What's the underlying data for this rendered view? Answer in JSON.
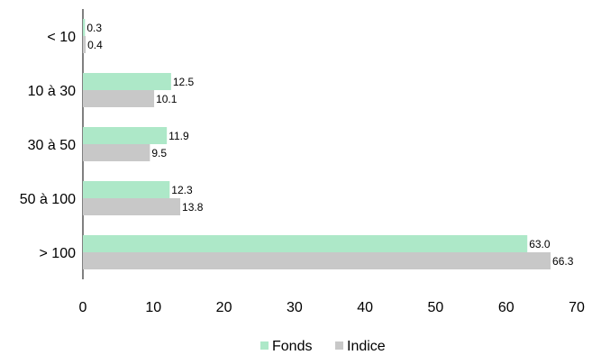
{
  "chart_data": {
    "type": "bar",
    "orientation": "horizontal",
    "categories": [
      "< 10",
      "10 à 30",
      "30 à 50",
      "50 à 100",
      "> 100"
    ],
    "series": [
      {
        "name": "Fonds",
        "values": [
          0.3,
          12.5,
          11.9,
          12.3,
          63.0
        ],
        "labels": [
          "0.3",
          "12.5",
          "11.9",
          "12.3",
          "63.0"
        ],
        "color": "#ade8c8"
      },
      {
        "name": "Indice",
        "values": [
          0.4,
          10.1,
          9.5,
          13.8,
          66.3
        ],
        "labels": [
          "0.4",
          "10.1",
          "9.5",
          "13.8",
          "66.3"
        ],
        "color": "#c8c8c8"
      }
    ],
    "xlim": [
      0,
      70
    ],
    "xticks": [
      "0",
      "10",
      "20",
      "30",
      "40",
      "50",
      "60",
      "70"
    ],
    "xtick_values": [
      0,
      10,
      20,
      30,
      40,
      50,
      60,
      70
    ],
    "grid": false,
    "legend_position": "bottom"
  }
}
